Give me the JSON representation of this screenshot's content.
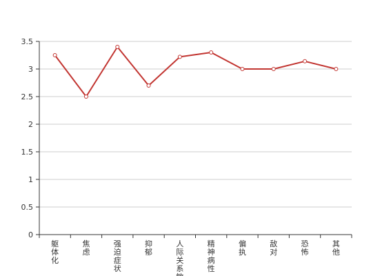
{
  "chart_data": {
    "type": "line",
    "categories": [
      "躯体化",
      "焦虑",
      "强迫症状",
      "抑郁",
      "人际关系敏感",
      "精神病性",
      "偏执",
      "敌对",
      "恐怖",
      "其他"
    ],
    "series": [
      {
        "values": [
          3.25,
          2.5,
          3.4,
          2.7,
          3.22,
          3.3,
          3.0,
          3.0,
          3.14,
          3.0
        ]
      }
    ],
    "y_ticks": [
      "0",
      "0.5",
      "1",
      "1.5",
      "2",
      "2.5",
      "3",
      "3.5"
    ],
    "ylim": [
      0,
      3.5
    ],
    "grid": true,
    "legend": "none",
    "colors": {
      "line": "#c23531",
      "grid": "#cccccc",
      "axis": "#333333"
    }
  }
}
